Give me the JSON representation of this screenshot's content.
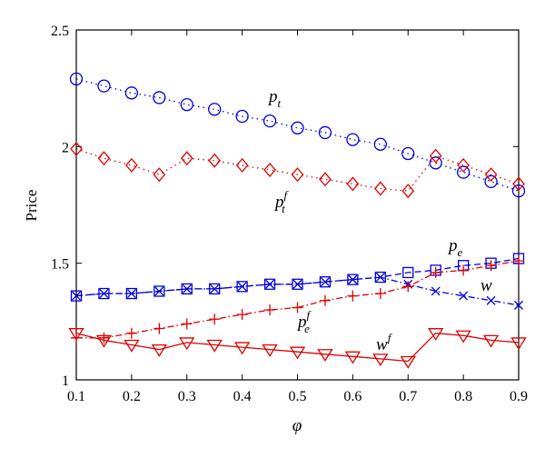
{
  "chart_data": {
    "type": "line",
    "xlabel": "φ",
    "ylabel": "Price",
    "xlim": [
      0.1,
      0.9
    ],
    "ylim": [
      1.0,
      2.5
    ],
    "x_ticks": [
      "0.1",
      "0.2",
      "0.3",
      "0.4",
      "0.5",
      "0.6",
      "0.7",
      "0.8",
      "0.9"
    ],
    "y_ticks": [
      "1",
      "1.5",
      "2",
      "2.5"
    ],
    "grid": false,
    "x": [
      0.1,
      0.15,
      0.2,
      0.25,
      0.3,
      0.35,
      0.4,
      0.45,
      0.5,
      0.55,
      0.6,
      0.65,
      0.7,
      0.75,
      0.8,
      0.85,
      0.9
    ],
    "series": [
      {
        "key": "pt",
        "label_base": "p",
        "label_sub": "t",
        "label_sup": "",
        "color": "#0000dd",
        "marker": "circle",
        "dash": "dotted",
        "values": [
          2.29,
          2.26,
          2.23,
          2.21,
          2.18,
          2.16,
          2.13,
          2.11,
          2.08,
          2.06,
          2.03,
          2.01,
          1.97,
          1.93,
          1.89,
          1.85,
          1.81
        ]
      },
      {
        "key": "ptf",
        "label_base": "p",
        "label_sub": "t",
        "label_sup": "f",
        "color": "#dd0000",
        "marker": "diamond",
        "dash": "dotted",
        "values": [
          1.99,
          1.95,
          1.92,
          1.88,
          1.95,
          1.94,
          1.92,
          1.9,
          1.88,
          1.86,
          1.84,
          1.82,
          1.81,
          1.96,
          1.92,
          1.88,
          1.84
        ]
      },
      {
        "key": "pe",
        "label_base": "p",
        "label_sub": "e",
        "label_sup": "",
        "color": "#0000dd",
        "marker": "square",
        "dash": "dashed",
        "values": [
          1.36,
          1.37,
          1.37,
          1.38,
          1.39,
          1.39,
          1.4,
          1.41,
          1.41,
          1.42,
          1.43,
          1.44,
          1.46,
          1.47,
          1.49,
          1.5,
          1.52
        ]
      },
      {
        "key": "w",
        "label_base": "w",
        "label_sub": "",
        "label_sup": "",
        "color": "#0000dd",
        "marker": "x",
        "dash": "dashdot",
        "values": [
          1.36,
          1.37,
          1.37,
          1.38,
          1.39,
          1.39,
          1.4,
          1.41,
          1.41,
          1.42,
          1.43,
          1.44,
          1.41,
          1.38,
          1.36,
          1.34,
          1.32
        ]
      },
      {
        "key": "pef",
        "label_base": "p",
        "label_sub": "e",
        "label_sup": "f",
        "color": "#dd0000",
        "marker": "plus",
        "dash": "dashdot",
        "values": [
          1.18,
          1.18,
          1.2,
          1.22,
          1.24,
          1.26,
          1.28,
          1.3,
          1.31,
          1.34,
          1.36,
          1.37,
          1.4,
          1.46,
          1.47,
          1.49,
          1.51
        ]
      },
      {
        "key": "wf",
        "label_base": "w",
        "label_sub": "",
        "label_sup": "f",
        "color": "#dd0000",
        "marker": "triangle-down",
        "dash": "solid",
        "values": [
          1.2,
          1.17,
          1.15,
          1.13,
          1.16,
          1.15,
          1.14,
          1.13,
          1.12,
          1.11,
          1.1,
          1.09,
          1.08,
          1.2,
          1.19,
          1.17,
          1.16
        ]
      }
    ]
  }
}
